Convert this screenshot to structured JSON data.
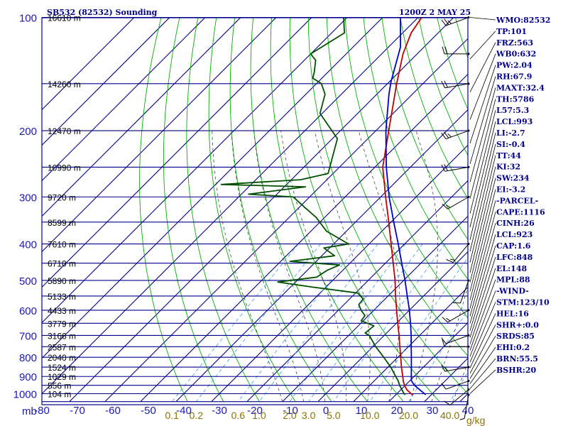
{
  "header": {
    "station": "SB532 (82532) Sounding",
    "time": "1200Z  2 MAY 25"
  },
  "colors": {
    "grid": "#00008b",
    "dry_adiabat": "#00b000",
    "moist_adiabat": "#444444",
    "mixing_ratio": "#3399ff",
    "temperature": "#c00000",
    "dewpoint": "#005000",
    "parcel": "#0000c8",
    "wind_barb": "#000000",
    "index_text": "#00008b"
  },
  "chart_data": {
    "type": "line",
    "skew_t": true,
    "ylabel": "mb",
    "xlabel_unit": "g/kg",
    "xlim": [
      -80,
      40
    ],
    "pressure_levels": [
      100,
      200,
      300,
      400,
      500,
      600,
      700,
      800,
      900,
      1000
    ],
    "pressure_tick_labels": [
      "100",
      "200",
      "300",
      "400",
      "500",
      "600",
      "700",
      "800",
      "900",
      "1000"
    ],
    "pressure_ylim": [
      100,
      1050
    ],
    "temperature_ticks": [
      -80,
      -70,
      -60,
      -50,
      -40,
      -30,
      -20,
      -10,
      0,
      10,
      20,
      30,
      40
    ],
    "temperature_tick_labels": [
      "-80",
      "-70",
      "-60",
      "-50",
      "-40",
      "-30",
      "-20",
      "-10",
      "0",
      "10",
      "20",
      "30",
      "40"
    ],
    "height_labels": [
      {
        "p": 100,
        "label": "16610 m"
      },
      {
        "p": 150,
        "label": "14260 m"
      },
      {
        "p": 200,
        "label": "12470 m"
      },
      {
        "p": 250,
        "label": "10990 m"
      },
      {
        "p": 300,
        "label": "9720 m"
      },
      {
        "p": 350,
        "label": "8599 m"
      },
      {
        "p": 400,
        "label": "7610 m"
      },
      {
        "p": 450,
        "label": "6710 m"
      },
      {
        "p": 500,
        "label": "5890 m"
      },
      {
        "p": 550,
        "label": "5133 m"
      },
      {
        "p": 600,
        "label": "4433 m"
      },
      {
        "p": 650,
        "label": "3779 m"
      },
      {
        "p": 700,
        "label": "3166 m"
      },
      {
        "p": 750,
        "label": "2587 m"
      },
      {
        "p": 800,
        "label": "2040 m"
      },
      {
        "p": 850,
        "label": "1524 m"
      },
      {
        "p": 900,
        "label": "1029 m"
      },
      {
        "p": 950,
        "label": "556 m"
      },
      {
        "p": 1000,
        "label": "104 m"
      }
    ],
    "mixing_ratio_labels": [
      {
        "value": 0.1,
        "label": "0.1"
      },
      {
        "value": 0.2,
        "label": "0.2"
      },
      {
        "value": 0.6,
        "label": "0.6"
      },
      {
        "value": 1.0,
        "label": "1.0"
      },
      {
        "value": 2.0,
        "label": "2.0"
      },
      {
        "value": 3.0,
        "label": "3.0"
      },
      {
        "value": 5.0,
        "label": "5.0"
      },
      {
        "value": 10.0,
        "label": "10.0"
      },
      {
        "value": 20.0,
        "label": "20.0"
      },
      {
        "value": 40.0,
        "label": "40.0"
      }
    ],
    "series": [
      {
        "key": "temperature",
        "points": [
          {
            "p": 1006,
            "t": 24.8
          },
          {
            "p": 1000,
            "t": 24.0
          },
          {
            "p": 975,
            "t": 21.6
          },
          {
            "p": 950,
            "t": 19.8
          },
          {
            "p": 925,
            "t": 18.2
          },
          {
            "p": 900,
            "t": 16.8
          },
          {
            "p": 850,
            "t": 13.8
          },
          {
            "p": 800,
            "t": 10.8
          },
          {
            "p": 750,
            "t": 7.6
          },
          {
            "p": 700,
            "t": 4.2
          },
          {
            "p": 650,
            "t": 0.4
          },
          {
            "p": 600,
            "t": -3.6
          },
          {
            "p": 550,
            "t": -7.9
          },
          {
            "p": 500,
            "t": -12.4
          },
          {
            "p": 450,
            "t": -17.8
          },
          {
            "p": 400,
            "t": -23.8
          },
          {
            "p": 350,
            "t": -30.6
          },
          {
            "p": 300,
            "t": -38.6
          },
          {
            "p": 250,
            "t": -47.8
          },
          {
            "p": 200,
            "t": -56.4
          },
          {
            "p": 150,
            "t": -67.4
          },
          {
            "p": 125,
            "t": -74.0
          },
          {
            "p": 110,
            "t": -77.6
          },
          {
            "p": 100,
            "t": -79.0
          }
        ]
      },
      {
        "key": "dewpoint",
        "points": [
          {
            "p": 1006,
            "t": 22.6
          },
          {
            "p": 1000,
            "t": 22.0
          },
          {
            "p": 950,
            "t": 18.4
          },
          {
            "p": 925,
            "t": 16.8
          },
          {
            "p": 900,
            "t": 14.8
          },
          {
            "p": 850,
            "t": 10.8
          },
          {
            "p": 800,
            "t": 6.0
          },
          {
            "p": 750,
            "t": 0.8
          },
          {
            "p": 700,
            "t": -4.2
          },
          {
            "p": 690,
            "t": -6.0
          },
          {
            "p": 660,
            "t": -5.6
          },
          {
            "p": 640,
            "t": -10.6
          },
          {
            "p": 620,
            "t": -11.0
          },
          {
            "p": 600,
            "t": -13.6
          },
          {
            "p": 580,
            "t": -15.8
          },
          {
            "p": 560,
            "t": -16.2
          },
          {
            "p": 540,
            "t": -19.4
          },
          {
            "p": 520,
            "t": -34.4
          },
          {
            "p": 505,
            "t": -45.0
          },
          {
            "p": 490,
            "t": -35.4
          },
          {
            "p": 470,
            "t": -34.4
          },
          {
            "p": 455,
            "t": -32.4
          },
          {
            "p": 445,
            "t": -47.4
          },
          {
            "p": 430,
            "t": -36.4
          },
          {
            "p": 410,
            "t": -41.6
          },
          {
            "p": 400,
            "t": -35.8
          },
          {
            "p": 370,
            "t": -45.6
          },
          {
            "p": 340,
            "t": -52.4
          },
          {
            "p": 320,
            "t": -58.4
          },
          {
            "p": 300,
            "t": -64.6
          },
          {
            "p": 295,
            "t": -78.0
          },
          {
            "p": 282,
            "t": -64.0
          },
          {
            "p": 278,
            "t": -88.4
          },
          {
            "p": 270,
            "t": -67.4
          },
          {
            "p": 260,
            "t": -61.4
          },
          {
            "p": 210,
            "t": -68.6
          },
          {
            "p": 180,
            "t": -80.6
          },
          {
            "p": 160,
            "t": -84.6
          },
          {
            "p": 150,
            "t": -88.6
          },
          {
            "p": 145,
            "t": -92.6
          },
          {
            "p": 140,
            "t": -93.8
          },
          {
            "p": 130,
            "t": -96.8
          },
          {
            "p": 125,
            "t": -100.0
          },
          {
            "p": 110,
            "t": -96.4
          },
          {
            "p": 100,
            "t": -101.0
          }
        ]
      },
      {
        "key": "parcel",
        "points": [
          {
            "p": 1006,
            "t": 28.4
          },
          {
            "p": 975,
            "t": 25.2
          },
          {
            "p": 950,
            "t": 22.6
          },
          {
            "p": 923,
            "t": 20.4
          },
          {
            "p": 900,
            "t": 19.2
          },
          {
            "p": 850,
            "t": 16.6
          },
          {
            "p": 800,
            "t": 13.8
          },
          {
            "p": 750,
            "t": 10.8
          },
          {
            "p": 700,
            "t": 7.6
          },
          {
            "p": 650,
            "t": 4.0
          },
          {
            "p": 600,
            "t": 0.0
          },
          {
            "p": 550,
            "t": -4.6
          },
          {
            "p": 500,
            "t": -9.6
          },
          {
            "p": 450,
            "t": -15.4
          },
          {
            "p": 400,
            "t": -21.8
          },
          {
            "p": 350,
            "t": -29.2
          },
          {
            "p": 300,
            "t": -37.6
          },
          {
            "p": 250,
            "t": -46.8
          },
          {
            "p": 200,
            "t": -57.2
          },
          {
            "p": 160,
            "t": -66.6
          },
          {
            "p": 148,
            "t": -69.6
          },
          {
            "p": 120,
            "t": -76.6
          },
          {
            "p": 100,
            "t": -85.0
          }
        ]
      }
    ],
    "winds": [
      {
        "p": 1006,
        "dir": 190,
        "speed": 5
      },
      {
        "p": 975,
        "dir": 230,
        "speed": 10
      },
      {
        "p": 925,
        "dir": 250,
        "speed": 10
      },
      {
        "p": 850,
        "dir": 260,
        "speed": 15
      },
      {
        "p": 750,
        "dir": 270,
        "speed": 10
      },
      {
        "p": 700,
        "dir": 250,
        "speed": 10
      },
      {
        "p": 600,
        "dir": 240,
        "speed": 15
      },
      {
        "p": 500,
        "dir": 200,
        "speed": 10
      },
      {
        "p": 400,
        "dir": 220,
        "speed": 15
      },
      {
        "p": 300,
        "dir": 240,
        "speed": 15
      },
      {
        "p": 250,
        "dir": 260,
        "speed": 20
      },
      {
        "p": 200,
        "dir": 250,
        "speed": 25
      },
      {
        "p": 150,
        "dir": 260,
        "speed": 20
      },
      {
        "p": 125,
        "dir": 270,
        "speed": 20
      },
      {
        "p": 100,
        "dir": 250,
        "speed": 25
      }
    ]
  },
  "indices": [
    "WMO:82532",
    "TP:101",
    "FRZ:563",
    "WB0:632",
    "PW:2.04",
    "RH:67.9",
    "MAXT:32.4",
    "TH:5786",
    "L57:5.3",
    "LCL:993",
    "LI:-2.7",
    "SI:-0.4",
    "TT:44",
    "KI:32",
    "SW:234",
    "EI:-3.2",
    "-PARCEL-",
    "CAPE:1116",
    "CINH:26",
    "LCL:923",
    "CAP:1.6",
    "LFC:848",
    "EL:148",
    "MPL:88",
    "-WIND-",
    "STM:123/10",
    "HEL:16",
    "SHR+:0.0",
    "SRDS:85",
    "EHI:0.2",
    "BRN:55.5",
    "BSHR:20"
  ]
}
